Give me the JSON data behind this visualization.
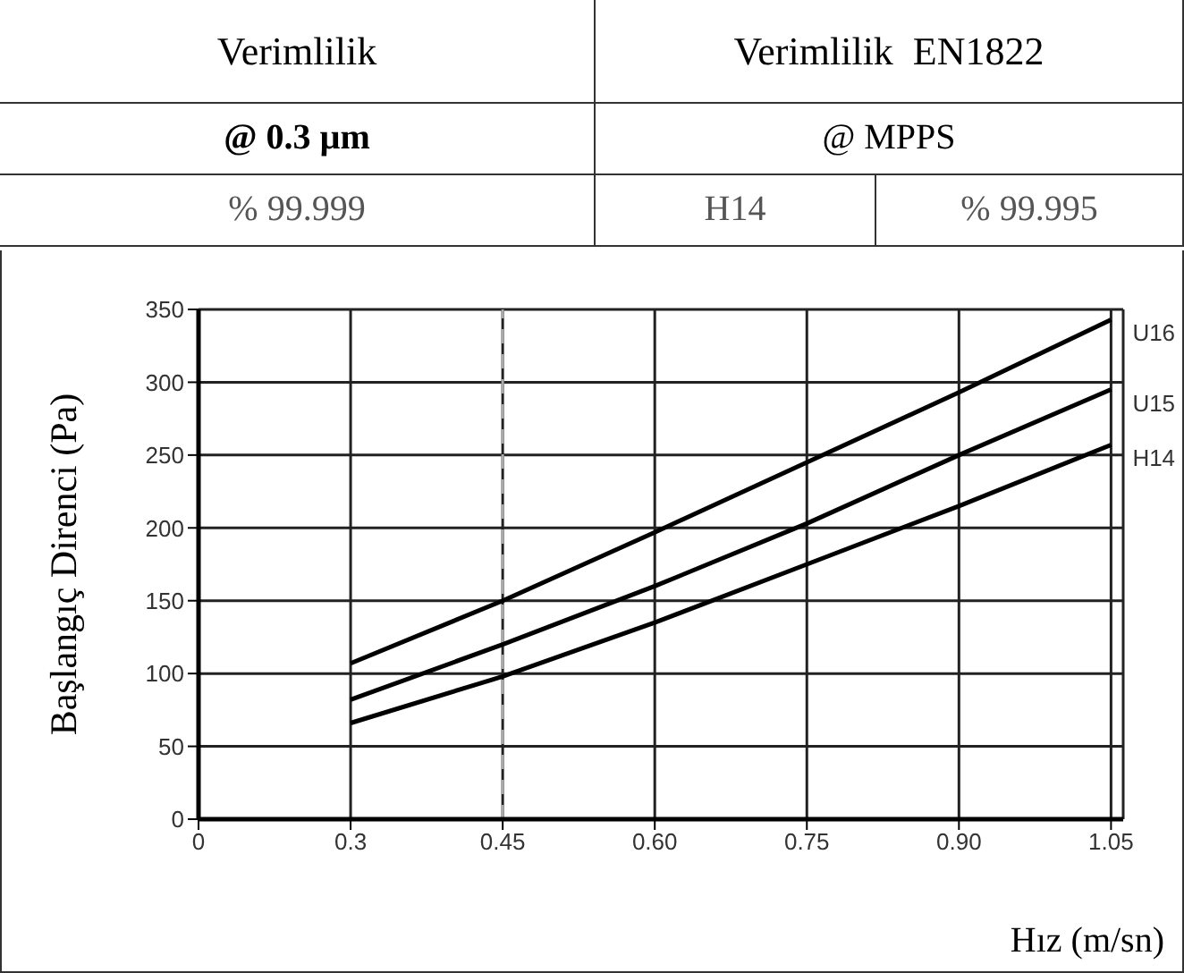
{
  "chart_data": {
    "type": "line",
    "annotations": [
      "Verimlilik",
      "Verimlilik  EN1822",
      "@ 0.3 µm",
      "@ MPPS",
      "% 99.999",
      "H14",
      "% 99.995"
    ],
    "xlabel": "Hız (m/sn)",
    "ylabel": "Başlangıç Direnci (Pa)",
    "categories": [
      "0",
      "0.3",
      "0.45",
      "0.60",
      "0.75",
      "0.90",
      "1.05"
    ],
    "series": [
      {
        "name": "U16",
        "color": "#000000",
        "values": [
          null,
          107,
          150,
          197,
          245,
          293,
          343
        ]
      },
      {
        "name": "U15",
        "color": "#000000",
        "values": [
          null,
          82,
          120,
          160,
          203,
          250,
          295
        ]
      },
      {
        "name": "H14",
        "color": "#000000",
        "values": [
          null,
          66,
          98,
          135,
          175,
          215,
          257
        ]
      }
    ],
    "ylim": [
      0,
      350
    ],
    "yticks": [
      0,
      50,
      100,
      150,
      200,
      250,
      300,
      350
    ],
    "ref_lines": [
      {
        "axis": "x",
        "value": "0.45",
        "color": "#aaaaaa",
        "line_style": "dashed"
      }
    ],
    "grid": true,
    "marker": "none",
    "line_style": "solid"
  }
}
